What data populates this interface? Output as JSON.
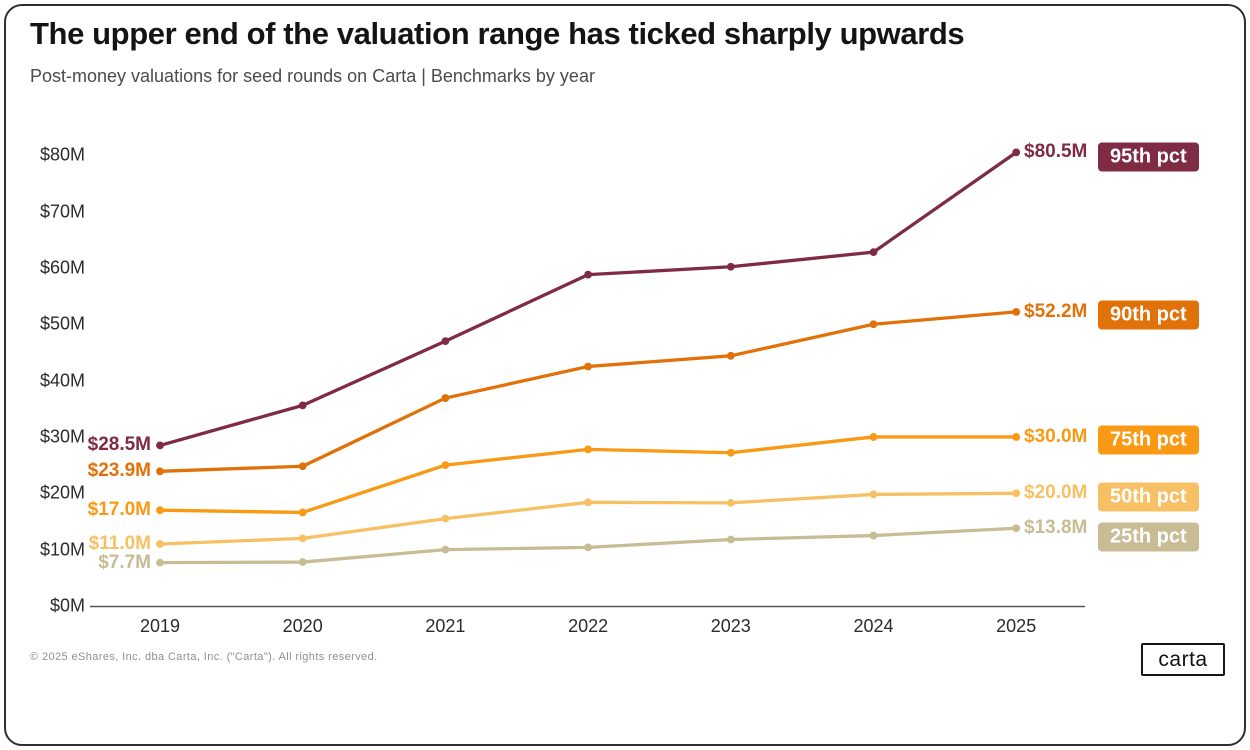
{
  "card": {
    "title": "The upper end of the valuation range has ticked sharply upwards",
    "subtitle": "Post-money valuations for seed rounds on Carta | Benchmarks by year",
    "footer": "© 2025 eShares, Inc. dba Carta, Inc. (\"Carta\"). All rights reserved.",
    "logo_text": "carta"
  },
  "chart_data": {
    "type": "line",
    "title": "The upper end of the valuation range has ticked sharply upwards",
    "subtitle": "Post-money valuations for seed rounds on Carta | Benchmarks by year",
    "categories": [
      "2019",
      "2020",
      "2021",
      "2022",
      "2023",
      "2024",
      "2025"
    ],
    "xlabel": "",
    "ylabel": "",
    "ylim": [
      0,
      85
    ],
    "grid": false,
    "legend_position": "right-badges",
    "y_ticks": [
      {
        "value": 0,
        "label": "$0M"
      },
      {
        "value": 10,
        "label": "$10M"
      },
      {
        "value": 20,
        "label": "$20M"
      },
      {
        "value": 30,
        "label": "$30M"
      },
      {
        "value": 40,
        "label": "$40M"
      },
      {
        "value": 50,
        "label": "$50M"
      },
      {
        "value": 60,
        "label": "$60M"
      },
      {
        "value": 70,
        "label": "$70M"
      },
      {
        "value": 80,
        "label": "$80M"
      }
    ],
    "series": [
      {
        "name": "95th pct",
        "color": "#7e2b43",
        "values": [
          28.5,
          35.6,
          47.0,
          58.8,
          60.2,
          62.8,
          80.5
        ],
        "start_label": "$28.5M",
        "end_label": "$80.5M",
        "badge_label": "95th pct"
      },
      {
        "name": "90th pct",
        "color": "#e17109",
        "values": [
          23.9,
          24.8,
          36.9,
          42.5,
          44.4,
          50.0,
          52.2
        ],
        "start_label": "$23.9M",
        "end_label": "$52.2M",
        "badge_label": "90th pct"
      },
      {
        "name": "75th pct",
        "color": "#f99914",
        "values": [
          17.0,
          16.6,
          25.0,
          27.8,
          27.2,
          30.0,
          30.0
        ],
        "start_label": "$17.0M",
        "end_label": "$30.0M",
        "badge_label": "75th pct"
      },
      {
        "name": "50th pct",
        "color": "#f7c065",
        "values": [
          11.0,
          12.0,
          15.5,
          18.4,
          18.3,
          19.8,
          20.0
        ],
        "start_label": "$11.0M",
        "end_label": "$20.0M",
        "badge_label": "50th pct"
      },
      {
        "name": "25th pct",
        "color": "#c8bc94",
        "values": [
          7.7,
          7.8,
          10.0,
          10.4,
          11.8,
          12.5,
          13.8
        ],
        "start_label": "$7.7M",
        "end_label": "$13.8M",
        "badge_label": "25th pct"
      }
    ]
  }
}
